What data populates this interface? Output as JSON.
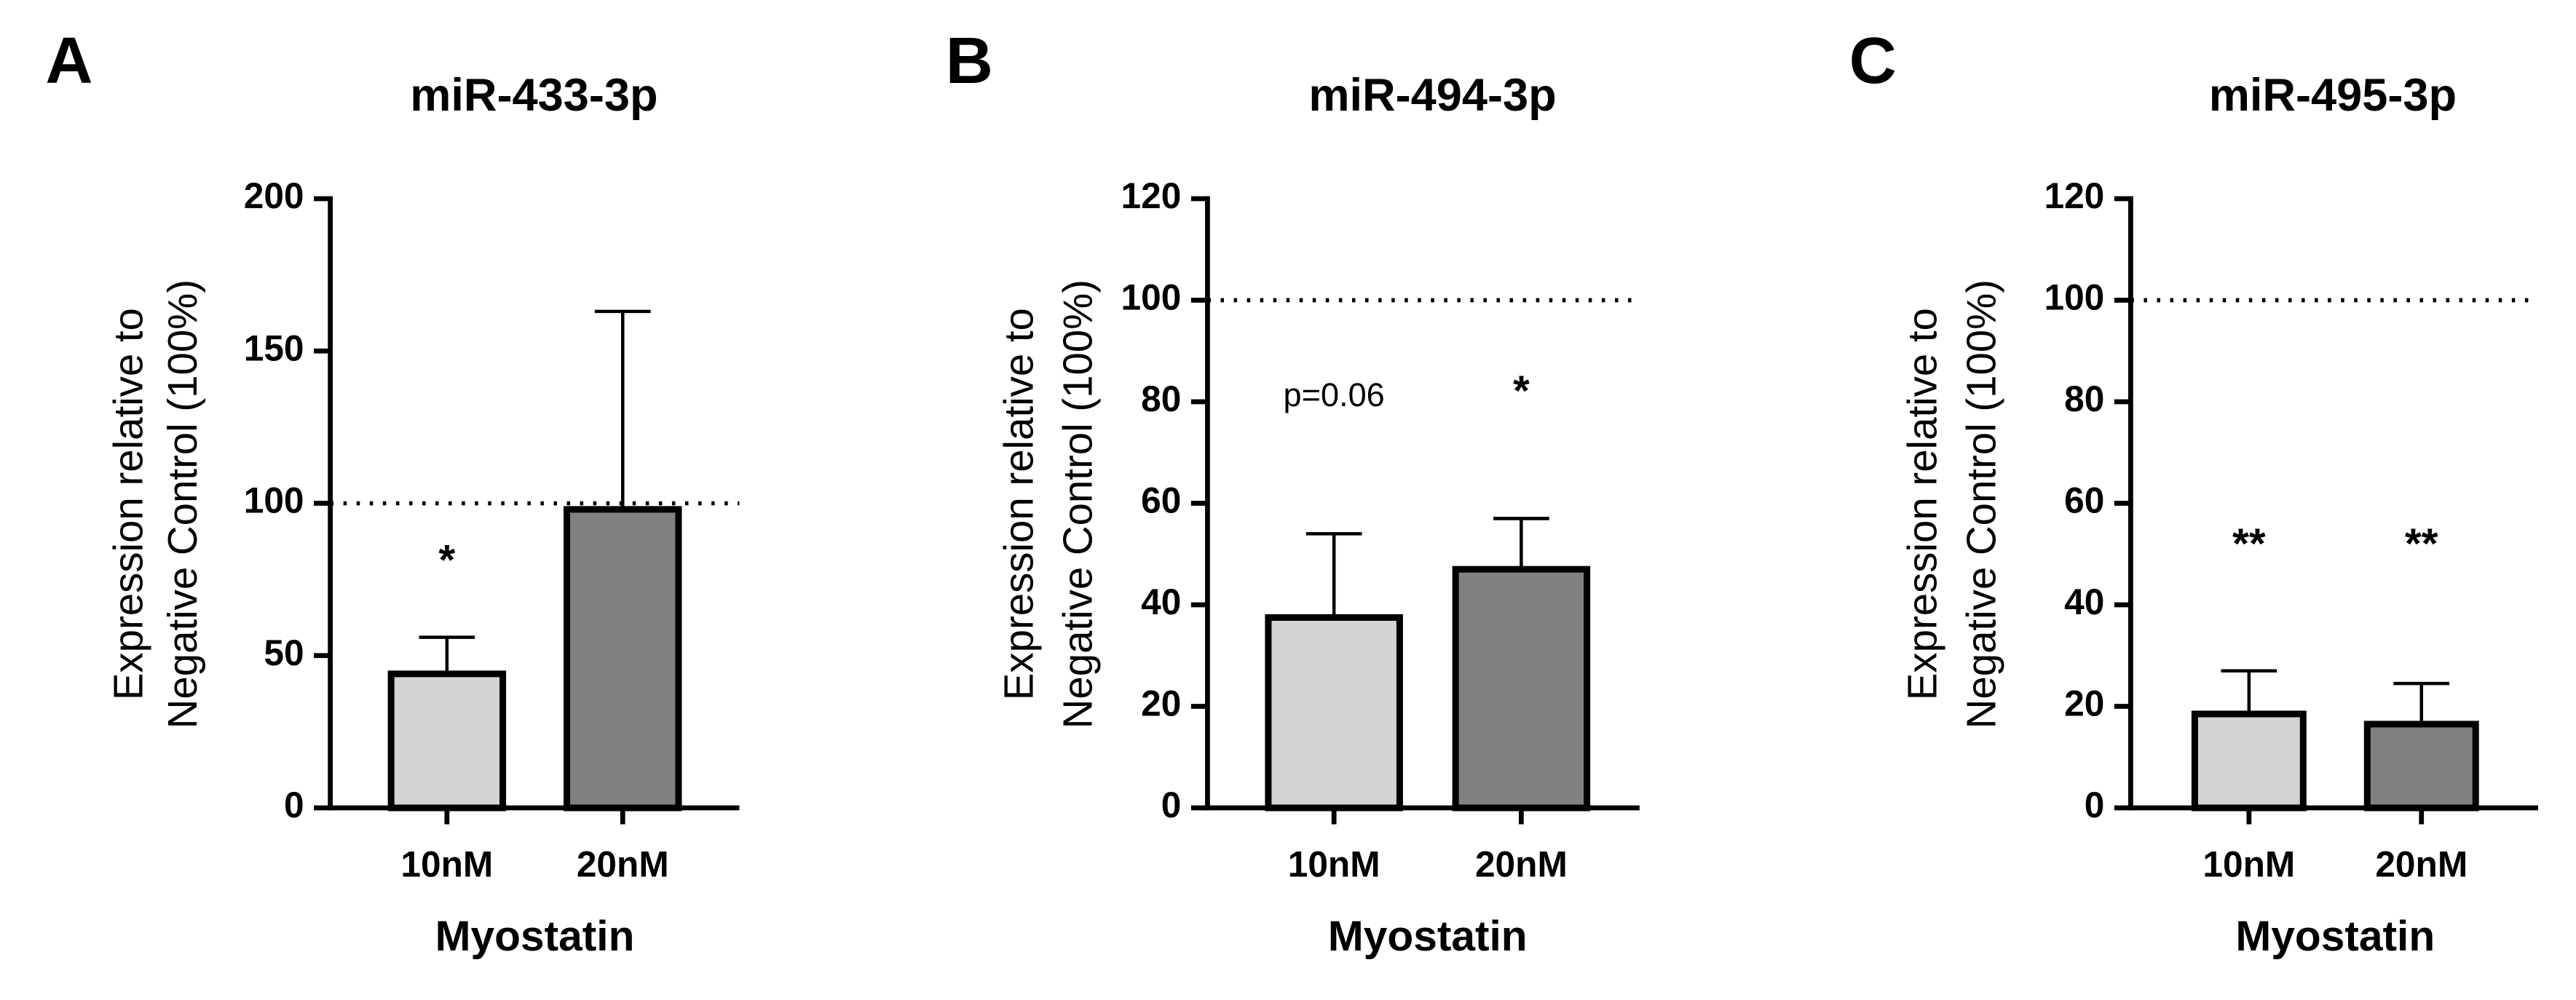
{
  "chart_data": [
    {
      "type": "bar",
      "panel_label": "A",
      "title": "miR-433-3p",
      "y_label": [
        "Expression relative to",
        "Negative Control (100%)"
      ],
      "x_label": "Myostatin",
      "categories": [
        "10nM",
        "20nM"
      ],
      "values": [
        44,
        98
      ],
      "errors": [
        12,
        65
      ],
      "colors": [
        "#d3d3d3",
        "#808080"
      ],
      "annotations": [
        "*",
        null
      ],
      "reference_line": 100,
      "ylim": [
        0,
        200
      ],
      "yticks": [
        0,
        50,
        100,
        150,
        200
      ]
    },
    {
      "type": "bar",
      "panel_label": "B",
      "title": "miR-494-3p",
      "y_label": [
        "Expression relative to",
        "Negative Control (100%)"
      ],
      "x_label": "Myostatin",
      "categories": [
        "10nM",
        "20nM"
      ],
      "values": [
        37.5,
        47
      ],
      "errors": [
        16.5,
        10
      ],
      "colors": [
        "#d3d3d3",
        "#808080"
      ],
      "annotations": [
        "p=0.06",
        "*"
      ],
      "reference_line": 100,
      "ylim": [
        0,
        120
      ],
      "yticks": [
        0,
        20,
        40,
        60,
        80,
        100,
        120
      ]
    },
    {
      "type": "bar",
      "panel_label": "C",
      "title": "miR-495-3p",
      "y_label": [
        "Expression relative to",
        "Negative Control (100%)"
      ],
      "x_label": "Myostatin",
      "categories": [
        "10nM",
        "20nM"
      ],
      "values": [
        18.5,
        16.5
      ],
      "errors": [
        8.5,
        8
      ],
      "colors": [
        "#d3d3d3",
        "#808080"
      ],
      "annotations": [
        "**",
        "**"
      ],
      "reference_line": 100,
      "ylim": [
        0,
        120
      ],
      "yticks": [
        0,
        20,
        40,
        60,
        80,
        100,
        120
      ]
    }
  ]
}
